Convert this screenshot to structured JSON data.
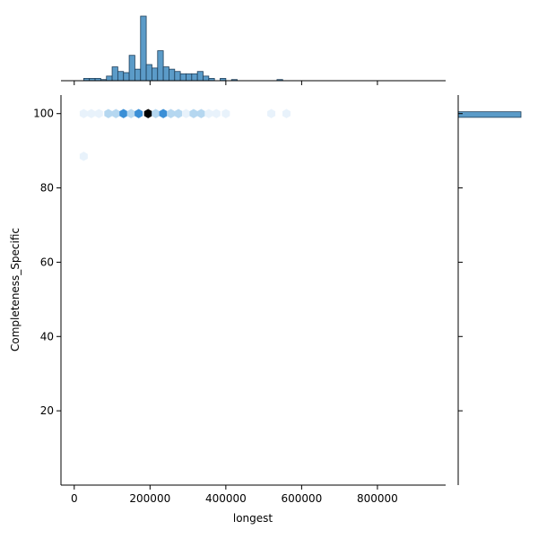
{
  "chart_data": {
    "type": "hexbin",
    "xlabel": "longest",
    "ylabel": "Completeness_Specific",
    "xlim": [
      -35000,
      980000
    ],
    "ylim": [
      0,
      105
    ],
    "x_ticks": [
      0,
      200000,
      400000,
      600000,
      800000
    ],
    "x_tick_labels": [
      "0",
      "200000",
      "400000",
      "600000",
      "800000"
    ],
    "y_ticks": [
      20,
      40,
      60,
      80,
      100
    ],
    "y_tick_labels": [
      "20",
      "40",
      "60",
      "80",
      "100"
    ],
    "colors": {
      "bar_fill": "#5b9bc8",
      "bar_edge": "#1f3f5a",
      "hex_dark": "#000000",
      "hex_mid": "#3b8fd6",
      "hex_light": "#b5d7f0",
      "hex_faint": "#e8f2fb"
    },
    "hexbin_points": [
      {
        "x": 25000,
        "y": 100,
        "level": "faint"
      },
      {
        "x": 45000,
        "y": 100,
        "level": "faint"
      },
      {
        "x": 65000,
        "y": 100,
        "level": "faint"
      },
      {
        "x": 90000,
        "y": 100,
        "level": "light"
      },
      {
        "x": 110000,
        "y": 100,
        "level": "light"
      },
      {
        "x": 130000,
        "y": 100,
        "level": "mid"
      },
      {
        "x": 150000,
        "y": 100,
        "level": "light"
      },
      {
        "x": 170000,
        "y": 100,
        "level": "mid"
      },
      {
        "x": 195000,
        "y": 100,
        "level": "dark"
      },
      {
        "x": 215000,
        "y": 100,
        "level": "light"
      },
      {
        "x": 235000,
        "y": 100,
        "level": "mid"
      },
      {
        "x": 255000,
        "y": 100,
        "level": "light"
      },
      {
        "x": 275000,
        "y": 100,
        "level": "light"
      },
      {
        "x": 295000,
        "y": 100,
        "level": "faint"
      },
      {
        "x": 315000,
        "y": 100,
        "level": "light"
      },
      {
        "x": 335000,
        "y": 100,
        "level": "light"
      },
      {
        "x": 355000,
        "y": 100,
        "level": "faint"
      },
      {
        "x": 375000,
        "y": 100,
        "level": "faint"
      },
      {
        "x": 400000,
        "y": 100,
        "level": "faint"
      },
      {
        "x": 520000,
        "y": 100,
        "level": "faint"
      },
      {
        "x": 560000,
        "y": 100,
        "level": "faint"
      },
      {
        "x": 25000,
        "y": 88.5,
        "level": "faint"
      }
    ],
    "marginal_x": {
      "bin_width": 15000,
      "bin_starts": [
        25000,
        40000,
        55000,
        70000,
        85000,
        100000,
        115000,
        130000,
        145000,
        160000,
        175000,
        190000,
        205000,
        220000,
        235000,
        250000,
        265000,
        280000,
        295000,
        310000,
        325000,
        340000,
        355000,
        370000,
        385000,
        415000,
        535000
      ],
      "counts": [
        1,
        1,
        1,
        0.5,
        2,
        6,
        4,
        3.5,
        11,
        5,
        28,
        7,
        5.5,
        13,
        6,
        5,
        4,
        3,
        3,
        3,
        4,
        2,
        1,
        0,
        1,
        0.5,
        0.5
      ],
      "max_count": 28
    },
    "marginal_y": {
      "bins": [
        {
          "y_low": 99,
          "y_high": 100.5,
          "count": 100
        }
      ],
      "max_count": 100
    }
  }
}
